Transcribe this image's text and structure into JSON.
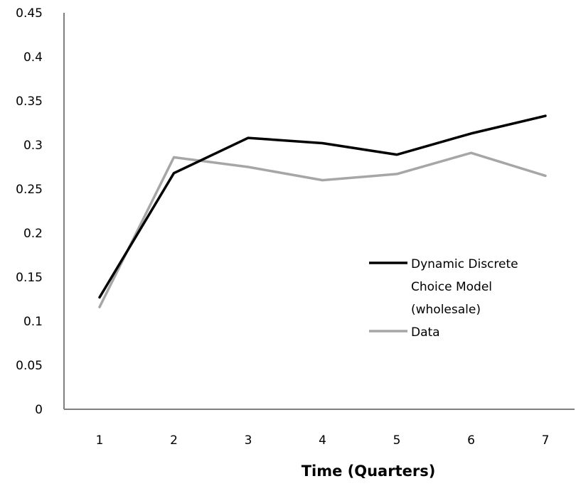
{
  "chart_data": {
    "type": "line",
    "title": "",
    "xlabel": "Time (Quarters)",
    "ylabel": "",
    "categories": [
      "1",
      "2",
      "3",
      "4",
      "5",
      "6",
      "7"
    ],
    "ylim": [
      0,
      0.45
    ],
    "yticks": [
      "0",
      "0.05",
      "0.1",
      "0.15",
      "0.2",
      "0.25",
      "0.3",
      "0.35",
      "0.4",
      "0.45"
    ],
    "grid": false,
    "legend_position": "right-middle",
    "series": [
      {
        "name": "Dynamic Discrete Choice Model (wholesale)",
        "legend_lines": [
          "Dynamic Discrete",
          "Choice Model",
          "(wholesale)"
        ],
        "color": "#000000",
        "values": [
          0.127,
          0.268,
          0.308,
          0.302,
          0.289,
          0.313,
          0.333
        ]
      },
      {
        "name": "Data",
        "legend_lines": [
          "Data"
        ],
        "color": "#a6a6a6",
        "values": [
          0.116,
          0.286,
          0.275,
          0.26,
          0.267,
          0.291,
          0.265
        ]
      }
    ]
  }
}
